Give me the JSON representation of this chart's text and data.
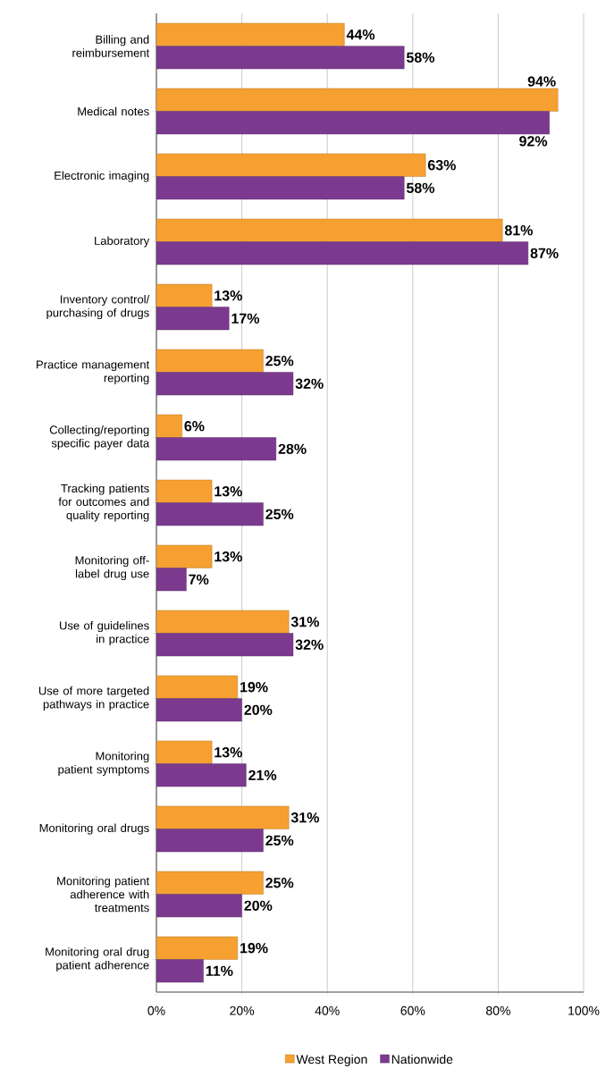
{
  "chart_data": {
    "type": "bar",
    "orientation": "horizontal",
    "categories": [
      "Billing and reimbursement",
      "Medical notes",
      "Electronic imaging",
      "Laboratory",
      "Inventory control/ purchasing of drugs",
      "Practice management reporting",
      "Collecting/reporting specific payer data",
      "Tracking patients for outcomes and quality reporting",
      "Monitoring off-label drug use",
      "Use of guidelines in practice",
      "Use of more targeted pathways in practice",
      "Monitoring patient symptoms",
      "Monitoring oral drugs",
      "Monitoring patient adherence with treatments",
      "Monitoring oral drug patient adherence"
    ],
    "series": [
      {
        "name": "West Region",
        "color": "#f5a031",
        "values": [
          44,
          94,
          63,
          81,
          13,
          25,
          6,
          13,
          13,
          31,
          19,
          13,
          31,
          25,
          19
        ],
        "value_labels": [
          "44%",
          "94%",
          "63%",
          "81%",
          "13%",
          "25%",
          "6%",
          "13%",
          "13%",
          "31%",
          "19%",
          "13%",
          "31%",
          "25%",
          "19%"
        ]
      },
      {
        "name": "Nationwide",
        "color": "#7b3a8e",
        "values": [
          58,
          92,
          58,
          87,
          17,
          32,
          28,
          25,
          7,
          32,
          20,
          21,
          25,
          20,
          11
        ],
        "value_labels": [
          "58%",
          "92%",
          "58%",
          "87%",
          "17%",
          "32%",
          "28%",
          "25%",
          "7%",
          "32%",
          "20%",
          "21%",
          "25%",
          "20%",
          "11%"
        ]
      }
    ],
    "xlim": [
      0,
      100
    ],
    "xticks": [
      {
        "value": 0,
        "label": "0%"
      },
      {
        "value": 20,
        "label": "20%"
      },
      {
        "value": 40,
        "label": "40%"
      },
      {
        "value": 60,
        "label": "60%"
      },
      {
        "value": 80,
        "label": "80%"
      },
      {
        "value": 100,
        "label": "100%"
      }
    ],
    "grid": "x",
    "legend": "bottom"
  }
}
